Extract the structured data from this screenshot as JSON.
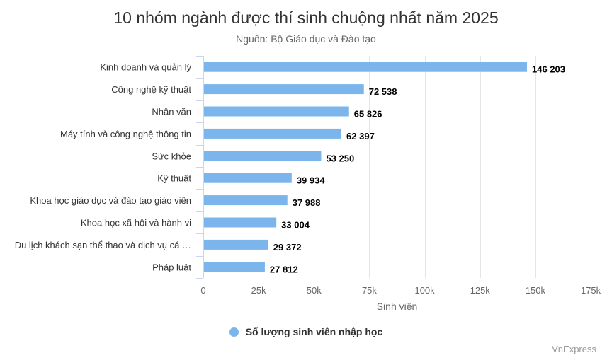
{
  "colors": {
    "bar": "#7cb5ec",
    "grid": "#e6e6e6",
    "axis_text": "#666666",
    "label_text": "#333333",
    "value_text": "#000000"
  },
  "credit": "VnExpress",
  "chart_data": {
    "type": "bar",
    "orientation": "horizontal",
    "title": "10 nhóm ngành được thí sinh chuộng nhất năm 2025",
    "subtitle": "Nguồn: Bộ Giáo dục và Đào tạo",
    "categories": [
      "Kinh doanh và quản lý",
      "Công nghệ kỹ thuật",
      "Nhân văn",
      "Máy tính và công nghệ thông tin",
      "Sức khỏe",
      "Kỹ thuật",
      "Khoa học giáo dục và đào tạo giáo viên",
      "Khoa học xã hội và hành vi",
      "Du lịch khách sạn thể thao và dịch vụ cá …",
      "Pháp luật"
    ],
    "series": [
      {
        "name": "Số lượng sinh viên nhập học",
        "values": [
          146203,
          72538,
          65826,
          62397,
          53250,
          39934,
          37988,
          33004,
          29372,
          27812
        ],
        "labels": [
          "146 203",
          "72 538",
          "65 826",
          "62 397",
          "53 250",
          "39 934",
          "37 988",
          "33 004",
          "29 372",
          "27 812"
        ]
      }
    ],
    "xlabel": "Sinh viên",
    "xlim": [
      0,
      175000
    ],
    "xticks": [
      0,
      25000,
      50000,
      75000,
      100000,
      125000,
      150000,
      175000
    ],
    "xtick_labels": [
      "0",
      "25k",
      "50k",
      "75k",
      "100k",
      "125k",
      "150k",
      "175k"
    ],
    "grid": true,
    "legend_position": "bottom"
  }
}
